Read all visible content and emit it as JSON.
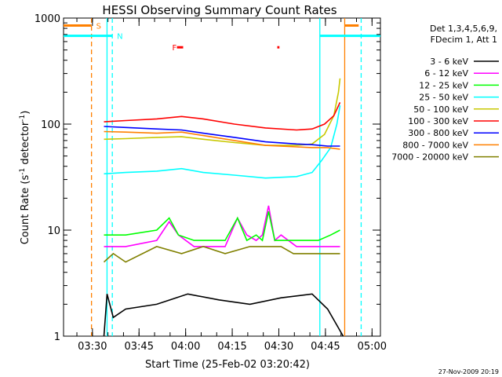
{
  "chart_data": {
    "type": "line",
    "title": "HESSI Observing Summary Count Rates",
    "xlabel": "Start Time (25-Feb-02 03:20:42)",
    "ylabel_main": "Count Rate (s",
    "ylabel_sup1": "-1",
    "ylabel_mid": " detector",
    "ylabel_sup2": "-1",
    "ylabel_end": ")",
    "footer": "27-Nov-2009 20:19",
    "y_scale": "log",
    "ylim": [
      1,
      1000
    ],
    "xlim_minutes": [
      0,
      102
    ],
    "x_ticks": [
      {
        "label": "03:30",
        "minutes": 9.3
      },
      {
        "label": "03:45",
        "minutes": 24.3
      },
      {
        "label": "04:00",
        "minutes": 39.3
      },
      {
        "label": "04:15",
        "minutes": 54.3
      },
      {
        "label": "04:30",
        "minutes": 69.3
      },
      {
        "label": "04:45",
        "minutes": 84.3
      },
      {
        "label": "05:00",
        "minutes": 99.3
      }
    ],
    "y_ticks": [
      {
        "label": "1",
        "value": 1
      },
      {
        "label": "10",
        "value": 10
      },
      {
        "label": "100",
        "value": 100
      },
      {
        "label": "1000",
        "value": 1000
      }
    ],
    "legend_header": [
      "Det 1,3,4,5,6,9,",
      "FDecim 1, Att 1"
    ],
    "legend_position": "right",
    "series": [
      {
        "name": "3 - 6 keV",
        "color": "#000000",
        "points": [
          [
            13,
            1
          ],
          [
            14,
            2.5
          ],
          [
            16,
            1.5
          ],
          [
            20,
            1.8
          ],
          [
            30,
            2
          ],
          [
            40,
            2.5
          ],
          [
            50,
            2.2
          ],
          [
            60,
            2
          ],
          [
            70,
            2.3
          ],
          [
            80,
            2.5
          ],
          [
            85,
            1.8
          ],
          [
            90,
            1
          ]
        ]
      },
      {
        "name": "6 - 12 keV",
        "color": "#ff00ff",
        "points": [
          [
            13,
            7
          ],
          [
            20,
            7
          ],
          [
            30,
            8
          ],
          [
            34,
            12
          ],
          [
            37,
            9
          ],
          [
            42,
            7
          ],
          [
            52,
            7
          ],
          [
            56,
            13
          ],
          [
            59,
            9
          ],
          [
            62,
            8
          ],
          [
            64,
            9
          ],
          [
            66,
            17
          ],
          [
            68,
            8
          ],
          [
            70,
            9
          ],
          [
            75,
            7
          ],
          [
            80,
            7
          ],
          [
            89,
            7
          ]
        ]
      },
      {
        "name": "12 - 25 keV",
        "color": "#00ff00",
        "points": [
          [
            13,
            9
          ],
          [
            20,
            9
          ],
          [
            30,
            10
          ],
          [
            34,
            13
          ],
          [
            37,
            9
          ],
          [
            42,
            8
          ],
          [
            52,
            8
          ],
          [
            56,
            13
          ],
          [
            59,
            8
          ],
          [
            62,
            9
          ],
          [
            64,
            8
          ],
          [
            66,
            15
          ],
          [
            68,
            8
          ],
          [
            70,
            8
          ],
          [
            76,
            8
          ],
          [
            82,
            8
          ],
          [
            86,
            9
          ],
          [
            89,
            10
          ]
        ]
      },
      {
        "name": "25 - 50 keV",
        "color": "#00ffff",
        "points": [
          [
            13,
            34
          ],
          [
            20,
            35
          ],
          [
            30,
            36
          ],
          [
            38,
            38
          ],
          [
            45,
            35
          ],
          [
            55,
            33
          ],
          [
            65,
            31
          ],
          [
            75,
            32
          ],
          [
            80,
            35
          ],
          [
            83,
            45
          ],
          [
            86,
            60
          ],
          [
            88,
            100
          ],
          [
            89,
            150
          ]
        ]
      },
      {
        "name": "50 - 100 keV",
        "color": "#c8c800",
        "points": [
          [
            13,
            72
          ],
          [
            20,
            73
          ],
          [
            30,
            75
          ],
          [
            38,
            76
          ],
          [
            45,
            72
          ],
          [
            55,
            67
          ],
          [
            65,
            63
          ],
          [
            75,
            63
          ],
          [
            80,
            65
          ],
          [
            84,
            80
          ],
          [
            87,
            120
          ],
          [
            88.5,
            200
          ],
          [
            89,
            270
          ]
        ]
      },
      {
        "name": "100 - 300 keV",
        "color": "#ff0000",
        "points": [
          [
            13,
            105
          ],
          [
            20,
            108
          ],
          [
            30,
            112
          ],
          [
            38,
            118
          ],
          [
            45,
            112
          ],
          [
            55,
            100
          ],
          [
            65,
            92
          ],
          [
            75,
            88
          ],
          [
            80,
            90
          ],
          [
            84,
            100
          ],
          [
            87,
            120
          ],
          [
            89,
            160
          ]
        ]
      },
      {
        "name": "300 - 800 keV",
        "color": "#0000ff",
        "points": [
          [
            13,
            95
          ],
          [
            20,
            93
          ],
          [
            30,
            90
          ],
          [
            38,
            88
          ],
          [
            45,
            82
          ],
          [
            55,
            75
          ],
          [
            65,
            68
          ],
          [
            75,
            65
          ],
          [
            80,
            64
          ],
          [
            85,
            62
          ],
          [
            89,
            62
          ]
        ]
      },
      {
        "name": "800 - 7000 keV",
        "color": "#ff8000",
        "points": [
          [
            13,
            85
          ],
          [
            20,
            84
          ],
          [
            30,
            82
          ],
          [
            38,
            84
          ],
          [
            45,
            78
          ],
          [
            55,
            70
          ],
          [
            65,
            63
          ],
          [
            75,
            61
          ],
          [
            80,
            60
          ],
          [
            85,
            60
          ],
          [
            89,
            58
          ]
        ]
      },
      {
        "name": "7000 - 20000 keV",
        "color": "#808000",
        "points": [
          [
            13,
            5
          ],
          [
            16,
            6
          ],
          [
            20,
            5
          ],
          [
            30,
            7
          ],
          [
            38,
            6
          ],
          [
            45,
            7
          ],
          [
            52,
            6
          ],
          [
            60,
            7
          ],
          [
            66,
            7
          ],
          [
            70,
            7
          ],
          [
            74,
            6
          ],
          [
            80,
            6
          ],
          [
            84,
            6
          ],
          [
            89,
            6
          ]
        ]
      }
    ],
    "vertical_lines": [
      {
        "minutes": 9.0,
        "color": "#ff8000",
        "style": "dashed"
      },
      {
        "minutes": 14.0,
        "color": "#00ffff",
        "style": "solid"
      },
      {
        "minutes": 15.7,
        "color": "#00ffff",
        "style": "dashed"
      },
      {
        "minutes": 82.5,
        "color": "#00ffff",
        "style": "solid"
      },
      {
        "minutes": 90.5,
        "color": "#ff8000",
        "style": "solid"
      },
      {
        "minutes": 95.8,
        "color": "#00ffff",
        "style": "dashed"
      }
    ],
    "flags": [
      {
        "label": "S",
        "color": "#ff8000",
        "intervals_minutes": [
          [
            0,
            9.0
          ],
          [
            90.5,
            95.0
          ]
        ],
        "level": 850
      },
      {
        "label": "N",
        "color": "#00ffff",
        "intervals_minutes": [
          [
            0,
            15.7
          ],
          [
            82.5,
            102
          ]
        ],
        "level": 680
      },
      {
        "label": "F",
        "color": "#ff0000",
        "intervals_minutes": [
          [
            36.5,
            38.5
          ],
          [
            68.8,
            69.5
          ]
        ],
        "level": 530
      }
    ]
  }
}
